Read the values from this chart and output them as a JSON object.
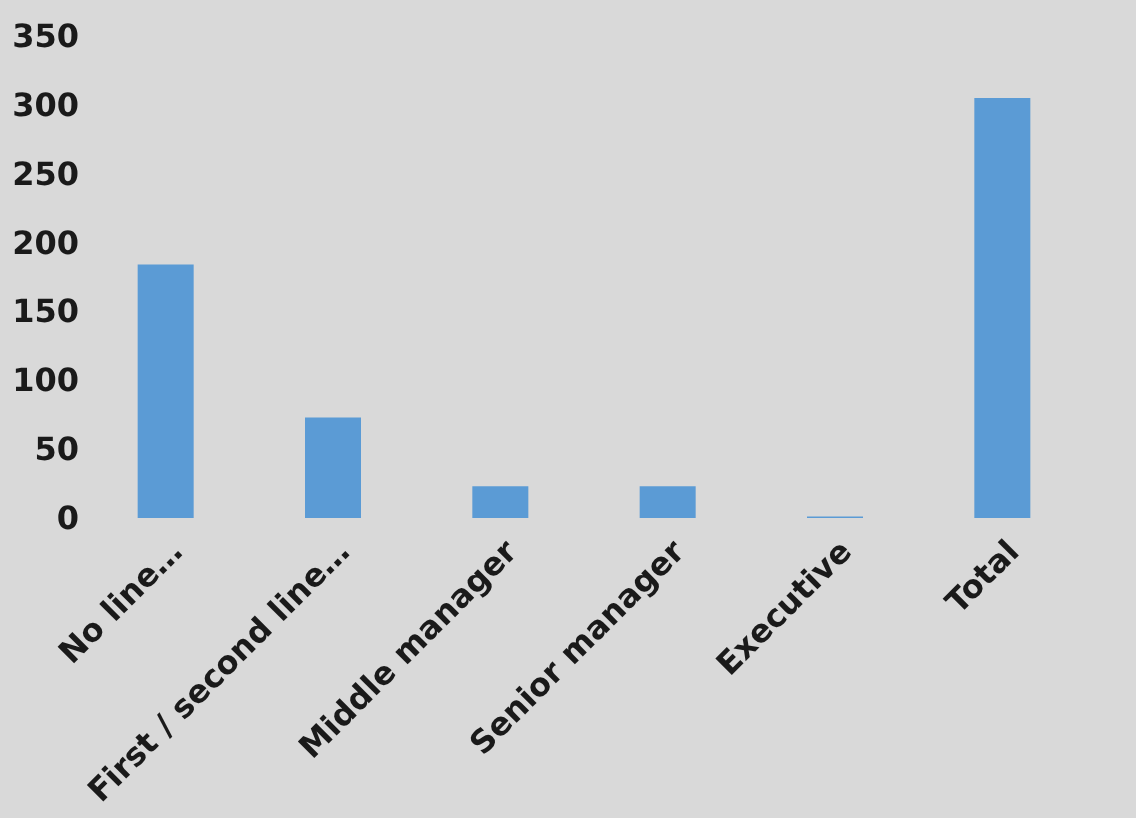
{
  "chart_data": {
    "type": "bar",
    "categories": [
      "No line…",
      "First / second line…",
      "Middle manager",
      "Senior manager",
      "Executive",
      "Total"
    ],
    "values": [
      184,
      73,
      23,
      23,
      1,
      305
    ],
    "color": "#5b9bd5",
    "ylim": [
      0,
      350
    ],
    "yticks": [
      0,
      50,
      100,
      150,
      200,
      250,
      300,
      350
    ]
  }
}
